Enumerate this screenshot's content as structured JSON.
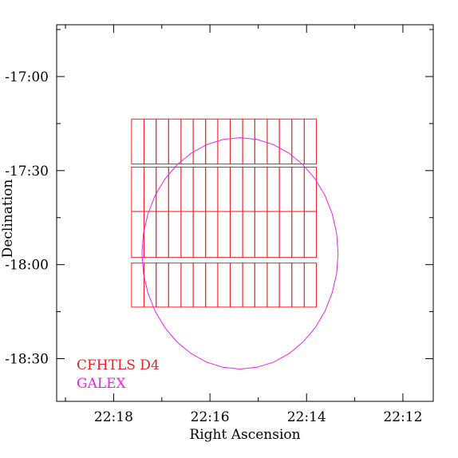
{
  "chart_data": {
    "type": "scatter",
    "title": "",
    "xlabel": "Right Ascension",
    "ylabel": "Declination",
    "x_axis": {
      "units": "RA (hours, minutes)",
      "reversed": true,
      "ticks_hours": [
        22.3,
        22.2667,
        22.2333,
        22.2
      ],
      "tick_labels": [
        "22:18",
        "22:16",
        "22:14",
        "22:12"
      ]
    },
    "y_axis": {
      "units": "Dec (degrees)",
      "ticks_deg": [
        -17.0,
        -17.5,
        -18.0,
        -18.5
      ],
      "tick_labels": [
        "-17:00",
        "-17:30",
        "-18:00",
        "-18:30"
      ]
    },
    "xlim_ra_hours": [
      22.3197,
      22.1895
    ],
    "ylim_dec_deg": [
      -18.7268,
      -16.7245
    ],
    "grid": false,
    "legend_position": "bottom-left",
    "colors": {
      "cfhtls": "#ee2222",
      "galex": "#ee22ee"
    },
    "series": [
      {
        "name": "CFHTLS D4",
        "shape": "rectangles",
        "rect_rows": [
          {
            "dec_top": -17.226,
            "dec_bottom": -17.4646,
            "ra_edges": [
              22.2938,
              22.2895,
              22.2853,
              22.281,
              22.2767,
              22.2725,
              22.2682,
              22.264,
              22.2597,
              22.2554,
              22.2512,
              22.2469,
              22.2427,
              22.2384,
              22.2341,
              22.2299
            ]
          },
          {
            "dec_top": -17.4816,
            "dec_bottom": -17.7173,
            "ra_edges": [
              22.2938,
              22.2895,
              22.2853,
              22.281,
              22.2767,
              22.2725,
              22.2682,
              22.264,
              22.2597,
              22.2554,
              22.2512,
              22.2469,
              22.2427,
              22.2384,
              22.2341,
              22.2299
            ]
          },
          {
            "dec_top": -17.7173,
            "dec_bottom": -17.9617,
            "ra_edges": [
              22.2938,
              22.2895,
              22.2853,
              22.281,
              22.2767,
              22.2725,
              22.2682,
              22.264,
              22.2597,
              22.2554,
              22.2512,
              22.2469,
              22.2427,
              22.2384,
              22.2341,
              22.2299
            ]
          },
          {
            "dec_top": -17.9915,
            "dec_bottom": -18.2258,
            "ra_edges": [
              22.2938,
              22.2895,
              22.2853,
              22.281,
              22.2767,
              22.2725,
              22.2682,
              22.264,
              22.2597,
              22.2554,
              22.2512,
              22.2469,
              22.2427,
              22.2384,
              22.2341,
              22.2299
            ]
          }
        ]
      },
      {
        "name": "GALEX",
        "shape": "circle",
        "center_ra_hours": 22.2563,
        "center_dec_deg": -17.94,
        "radius_ra_hours": 0.0339,
        "radius_dec_deg": 0.615
      }
    ],
    "legend": [
      {
        "label": "CFHTLS D4",
        "color": "#ee2222"
      },
      {
        "label": "GALEX",
        "color": "#ee22ee"
      }
    ]
  }
}
